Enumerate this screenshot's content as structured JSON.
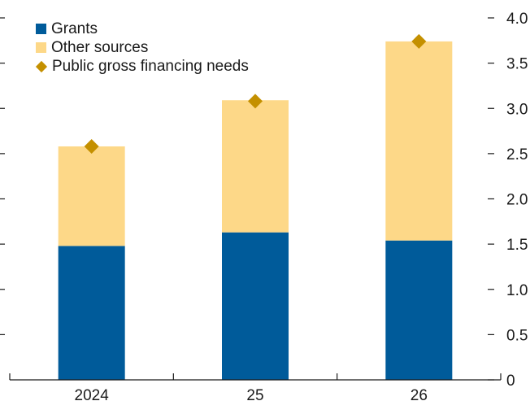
{
  "chart_data": {
    "type": "bar",
    "title": "",
    "xlabel": "",
    "ylabel": "",
    "categories": [
      "2024",
      "25",
      "26"
    ],
    "series": [
      {
        "name": "Grants",
        "kind": "bar",
        "stack": "total",
        "values": [
          1.48,
          1.63,
          1.54
        ],
        "color": "#005b9a"
      },
      {
        "name": "Other sources",
        "kind": "bar",
        "stack": "total",
        "values": [
          1.1,
          1.46,
          2.2
        ],
        "color": "#fdd888"
      },
      {
        "name": "Public gross financing needs",
        "kind": "marker",
        "values": [
          2.58,
          3.08,
          3.74
        ],
        "color": "#c49000"
      }
    ],
    "y_axis": {
      "side": "right",
      "ylim": [
        0,
        4.0
      ],
      "ticks": [
        0,
        0.5,
        1.0,
        1.5,
        2.0,
        2.5,
        3.0,
        3.5,
        4.0
      ],
      "tick_labels": [
        "0",
        "0.5",
        "1.0",
        "1.5",
        "2.0",
        "2.5",
        "3.0",
        "3.5",
        "4.0"
      ]
    },
    "left_tick_marks": true,
    "grid": false,
    "legend_position": "top-left"
  }
}
